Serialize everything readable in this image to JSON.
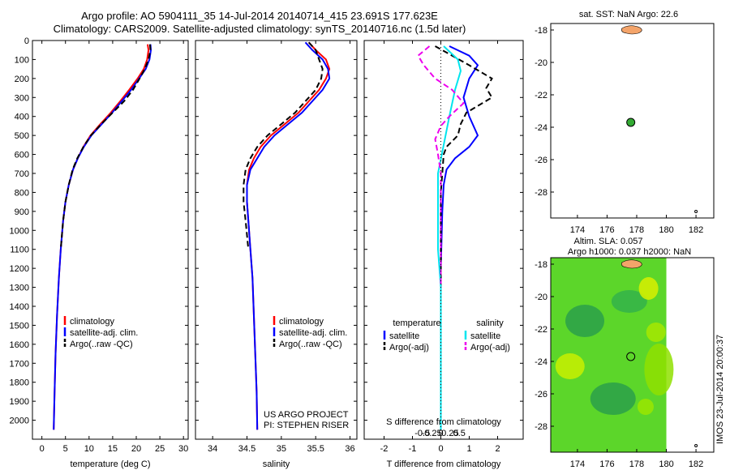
{
  "header": {
    "title_line1": "Argo profile: AO 5904111_35 14-Jul-2014 20140714_415 23.691S 177.623E",
    "title_line2": "Climatology: CARS2009. Satellite-adjusted climatology: synTS_20140716.nc (1.5d later)"
  },
  "map_sst": {
    "title": "sat. SST: NaN Argo: 22.6"
  },
  "map_sla": {
    "title_line1": "Altim. SLA: 0.057",
    "title_line2": "Argo h1000: 0.037 h2000: NaN"
  },
  "stamp": "IMOS 23-Jul-2014 20:00:37",
  "colors": {
    "climatology": "#ff0000",
    "satellite": "#0000ff",
    "argo": "#000000",
    "sat_salinity": "#00e5ee",
    "argo_salinity": "#ee00ee",
    "float_marker": "#33aa33",
    "island": "#f4a46a"
  },
  "chart_data": [
    {
      "type": "line",
      "name": "temperature",
      "xlabel": "temperature (deg C)",
      "ylabel": "",
      "xlim": [
        -2,
        31
      ],
      "ylim": [
        2100,
        0
      ],
      "xticks": [
        0,
        5,
        10,
        15,
        20,
        25,
        30
      ],
      "yticks": [
        0,
        100,
        200,
        300,
        400,
        500,
        600,
        700,
        800,
        900,
        1000,
        1100,
        1200,
        1300,
        1400,
        1500,
        1600,
        1700,
        1800,
        1900,
        2000
      ],
      "legend": [
        "climatology",
        "satellite-adj. clim.",
        "Argo(..raw -QC)"
      ],
      "series": [
        {
          "name": "climatology",
          "style": "solid",
          "color": "#ff0000",
          "points": [
            [
              22.4,
              20
            ],
            [
              22.6,
              50
            ],
            [
              22.3,
              100
            ],
            [
              21.6,
              150
            ],
            [
              20.3,
              200
            ],
            [
              18.5,
              260
            ],
            [
              16.6,
              320
            ],
            [
              14.6,
              380
            ],
            [
              12.4,
              440
            ],
            [
              10.3,
              500
            ],
            [
              8.8,
              560
            ],
            [
              7.6,
              620
            ],
            [
              6.6,
              680
            ],
            [
              5.7,
              760
            ],
            [
              5.0,
              850
            ],
            [
              4.5,
              950
            ],
            [
              4.0,
              1100
            ],
            [
              3.6,
              1250
            ],
            [
              3.2,
              1450
            ],
            [
              2.9,
              1650
            ],
            [
              2.7,
              1850
            ],
            [
              2.5,
              2050
            ]
          ]
        },
        {
          "name": "satellite-adj. clim.",
          "style": "solid",
          "color": "#0000ff",
          "points": [
            [
              23.0,
              20
            ],
            [
              23.1,
              50
            ],
            [
              22.8,
              100
            ],
            [
              22.0,
              150
            ],
            [
              20.6,
              200
            ],
            [
              18.9,
              260
            ],
            [
              16.9,
              320
            ],
            [
              14.9,
              380
            ],
            [
              12.7,
              440
            ],
            [
              10.5,
              500
            ],
            [
              8.9,
              560
            ],
            [
              7.6,
              620
            ],
            [
              6.6,
              680
            ],
            [
              5.7,
              760
            ],
            [
              5.0,
              850
            ],
            [
              4.5,
              950
            ],
            [
              4.0,
              1100
            ],
            [
              3.6,
              1250
            ],
            [
              3.2,
              1450
            ],
            [
              2.9,
              1650
            ],
            [
              2.7,
              1850
            ],
            [
              2.5,
              2050
            ]
          ]
        },
        {
          "name": "Argo(..raw -QC)",
          "style": "dashed",
          "color": "#000000",
          "points": [
            [
              22.9,
              20
            ],
            [
              23.0,
              50
            ],
            [
              22.6,
              100
            ],
            [
              21.8,
              150
            ],
            [
              20.7,
              200
            ],
            [
              19.3,
              260
            ],
            [
              17.4,
              320
            ],
            [
              15.0,
              380
            ],
            [
              12.6,
              440
            ],
            [
              10.4,
              500
            ],
            [
              8.8,
              560
            ],
            [
              7.5,
              620
            ],
            [
              6.5,
              680
            ],
            [
              5.7,
              760
            ],
            [
              5.0,
              850
            ],
            [
              4.5,
              950
            ],
            [
              4.0,
              1100
            ]
          ]
        }
      ]
    },
    {
      "type": "line",
      "name": "salinity",
      "xlabel": "salinity",
      "ylabel": "",
      "xlim": [
        33.75,
        36.1
      ],
      "ylim": [
        2100,
        0
      ],
      "xticks": [
        34,
        34.5,
        35,
        35.5,
        36
      ],
      "legend": [
        "climatology",
        "satellite-adj. clim.",
        "Argo(..raw -QC)"
      ],
      "annotation": [
        "US ARGO PROJECT",
        "PI: STEPHEN RISER"
      ],
      "series": [
        {
          "name": "climatology",
          "style": "solid",
          "color": "#ff0000",
          "points": [
            [
              35.4,
              10
            ],
            [
              35.5,
              50
            ],
            [
              35.65,
              100
            ],
            [
              35.7,
              150
            ],
            [
              35.65,
              200
            ],
            [
              35.55,
              260
            ],
            [
              35.4,
              320
            ],
            [
              35.25,
              380
            ],
            [
              35.05,
              440
            ],
            [
              34.85,
              500
            ],
            [
              34.7,
              560
            ],
            [
              34.6,
              620
            ],
            [
              34.53,
              680
            ],
            [
              34.5,
              760
            ],
            [
              34.5,
              850
            ],
            [
              34.52,
              950
            ],
            [
              34.55,
              1100
            ],
            [
              34.58,
              1250
            ],
            [
              34.6,
              1450
            ],
            [
              34.62,
              1650
            ],
            [
              34.64,
              1850
            ],
            [
              34.65,
              2050
            ]
          ]
        },
        {
          "name": "satellite-adj. clim.",
          "style": "solid",
          "color": "#0000ff",
          "points": [
            [
              35.35,
              10
            ],
            [
              35.45,
              50
            ],
            [
              35.6,
              100
            ],
            [
              35.68,
              150
            ],
            [
              35.7,
              200
            ],
            [
              35.6,
              260
            ],
            [
              35.45,
              320
            ],
            [
              35.3,
              380
            ],
            [
              35.1,
              440
            ],
            [
              34.9,
              500
            ],
            [
              34.75,
              560
            ],
            [
              34.65,
              620
            ],
            [
              34.55,
              680
            ],
            [
              34.5,
              760
            ],
            [
              34.5,
              850
            ],
            [
              34.52,
              950
            ],
            [
              34.55,
              1100
            ],
            [
              34.58,
              1250
            ],
            [
              34.6,
              1450
            ],
            [
              34.62,
              1650
            ],
            [
              34.64,
              1850
            ],
            [
              34.65,
              2050
            ]
          ]
        },
        {
          "name": "Argo(..raw -QC)",
          "style": "dashed",
          "color": "#000000",
          "points": [
            [
              35.4,
              10
            ],
            [
              35.5,
              50
            ],
            [
              35.55,
              100
            ],
            [
              35.6,
              150
            ],
            [
              35.58,
              200
            ],
            [
              35.5,
              260
            ],
            [
              35.35,
              320
            ],
            [
              35.2,
              380
            ],
            [
              35.0,
              440
            ],
            [
              34.8,
              500
            ],
            [
              34.65,
              560
            ],
            [
              34.55,
              620
            ],
            [
              34.48,
              680
            ],
            [
              34.45,
              760
            ],
            [
              34.45,
              850
            ],
            [
              34.48,
              950
            ],
            [
              34.52,
              1100
            ]
          ]
        }
      ]
    },
    {
      "type": "line",
      "name": "difference",
      "xlabel": "T difference from climatology",
      "x2label": "S difference from climatology",
      "ylabel": "",
      "xlim": [
        -2.7,
        2.9
      ],
      "ylim": [
        2100,
        0
      ],
      "xticks": [
        -2,
        -1,
        0,
        1,
        2
      ],
      "x2ticks": [
        -0.5,
        -0.25,
        0,
        0.25,
        0.5
      ],
      "legend_headers": [
        "temperature",
        "salinity"
      ],
      "legend": [
        "satellite",
        "Argo(-adj)",
        "satellite",
        "Argo(-adj)"
      ],
      "series": [
        {
          "name": "temperature satellite",
          "style": "solid",
          "color": "#0000ff",
          "points": [
            [
              0.3,
              30
            ],
            [
              1.0,
              80
            ],
            [
              1.3,
              130
            ],
            [
              1.0,
              200
            ],
            [
              0.8,
              300
            ],
            [
              1.0,
              400
            ],
            [
              1.3,
              500
            ],
            [
              1.0,
              560
            ],
            [
              0.5,
              620
            ],
            [
              0.2,
              680
            ],
            [
              0.1,
              760
            ],
            [
              0.05,
              900
            ],
            [
              0.0,
              1200
            ],
            [
              0.0,
              2050
            ]
          ]
        },
        {
          "name": "temperature Argo(-adj)",
          "style": "dashed",
          "color": "#000000",
          "points": [
            [
              -0.2,
              30
            ],
            [
              0.4,
              80
            ],
            [
              1.0,
              130
            ],
            [
              1.8,
              200
            ],
            [
              1.6,
              250
            ],
            [
              1.8,
              300
            ],
            [
              0.9,
              380
            ],
            [
              0.7,
              440
            ],
            [
              0.6,
              500
            ],
            [
              0.2,
              560
            ],
            [
              0.1,
              600
            ],
            [
              0.05,
              700
            ],
            [
              0.0,
              800
            ],
            [
              0.0,
              1200
            ],
            [
              0.0,
              2050
            ]
          ]
        },
        {
          "name": "salinity satellite",
          "style": "solid",
          "color": "#00e5ee",
          "points": [
            [
              0.1,
              30
            ],
            [
              0.6,
              100
            ],
            [
              0.7,
              160
            ],
            [
              0.5,
              260
            ],
            [
              0.3,
              400
            ],
            [
              0.1,
              550
            ],
            [
              -0.1,
              700
            ],
            [
              -0.1,
              900
            ],
            [
              -0.1,
              1100
            ],
            [
              0.0,
              1300
            ],
            [
              0.0,
              1400
            ],
            [
              0.0,
              2050
            ]
          ]
        },
        {
          "name": "salinity Argo(-adj)",
          "style": "dashed",
          "color": "#ee00ee",
          "points": [
            [
              -0.4,
              30
            ],
            [
              -0.8,
              80
            ],
            [
              -0.6,
              130
            ],
            [
              -0.2,
              200
            ],
            [
              0.4,
              260
            ],
            [
              0.8,
              330
            ],
            [
              0.3,
              400
            ],
            [
              0.0,
              450
            ],
            [
              -0.2,
              520
            ],
            [
              -0.1,
              600
            ],
            [
              0.0,
              700
            ],
            [
              0.0,
              1100
            ],
            [
              0.0,
              1300
            ]
          ]
        }
      ]
    },
    {
      "type": "scatter",
      "name": "sst-map",
      "xlim": [
        172.2,
        183.2
      ],
      "ylim": [
        -29.6,
        -17.6
      ],
      "xticks": [
        174,
        176,
        178,
        180,
        182
      ],
      "yticks": [
        -18,
        -20,
        -22,
        -24,
        -26,
        -28
      ],
      "points": [
        [
          177.6,
          -23.7
        ]
      ],
      "grid": false
    },
    {
      "type": "heatmap",
      "name": "sla-map",
      "xlim": [
        172.2,
        183.2
      ],
      "ylim": [
        -29.6,
        -17.6
      ],
      "xticks": [
        174,
        176,
        178,
        180,
        182
      ],
      "yticks": [
        -18,
        -20,
        -22,
        -24,
        -26,
        -28
      ],
      "points": [
        [
          177.6,
          -23.7
        ]
      ],
      "data_east_limit": 180.0
    }
  ]
}
